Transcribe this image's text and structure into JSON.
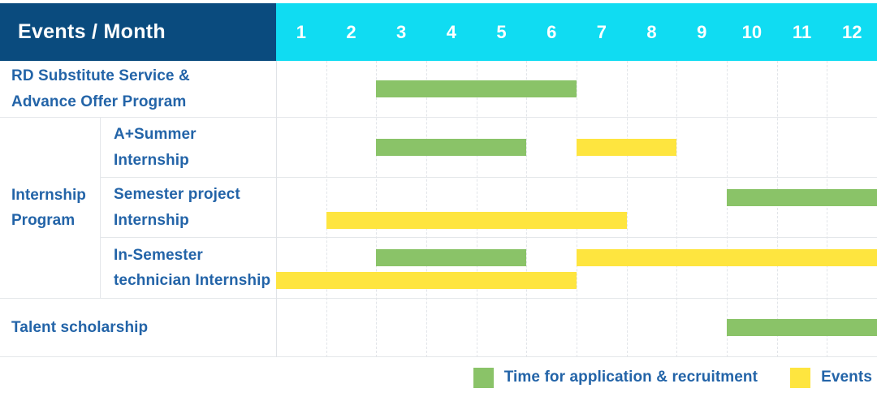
{
  "header": {
    "title": "Events / Month"
  },
  "colors": {
    "header_bg": "#0a4b7e",
    "months_bg": "#10dcf2",
    "application": "#8ac368",
    "event": "#fee53f",
    "label_text": "#2364a8"
  },
  "chart_data": {
    "type": "gantt",
    "title": "Events / Month",
    "months": [
      "1",
      "2",
      "3",
      "4",
      "5",
      "6",
      "7",
      "8",
      "9",
      "10",
      "11",
      "12"
    ],
    "month_range": [
      1,
      12
    ],
    "rows": [
      {
        "label": "RD Substitute Service &\nAdvance Offer Program",
        "bars": [
          {
            "type": "application",
            "start": 3,
            "end": 6,
            "lane": "middle"
          }
        ]
      },
      {
        "group": "Internship\nProgram",
        "label": "A+Summer\nInternship",
        "bars": [
          {
            "type": "application",
            "start": 3,
            "end": 5,
            "lane": "middle"
          },
          {
            "type": "event",
            "start": 7,
            "end": 8,
            "lane": "middle"
          }
        ]
      },
      {
        "label": "Semester project\nInternship",
        "bars": [
          {
            "type": "application",
            "start": 10,
            "end": 12,
            "lane": "top"
          },
          {
            "type": "event",
            "start": 2,
            "end": 7,
            "lane": "bottom"
          }
        ]
      },
      {
        "label": "In-Semester\ntechnician Internship",
        "bars": [
          {
            "type": "application",
            "start": 3,
            "end": 5,
            "lane": "top"
          },
          {
            "type": "event",
            "start": 7,
            "end": 12,
            "lane": "top"
          },
          {
            "type": "event",
            "start": 1,
            "end": 6,
            "lane": "bottom"
          }
        ]
      },
      {
        "label": "Talent scholarship",
        "bars": [
          {
            "type": "application",
            "start": 10,
            "end": 12,
            "lane": "middle"
          }
        ]
      }
    ],
    "legend": [
      {
        "type": "application",
        "label": "Time for application & recruitment"
      },
      {
        "type": "event",
        "label": "Events"
      }
    ]
  }
}
